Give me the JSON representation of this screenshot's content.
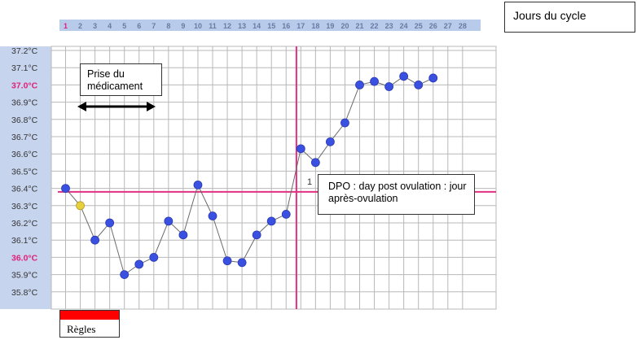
{
  "legend": {
    "label": "Jours du cycle"
  },
  "annotations": {
    "medication": "Prise du médicament",
    "dpo": "DPO : day post ovulation : jour après-ovulation",
    "dpo_marker": "1",
    "regles": "Règles"
  },
  "colors": {
    "day_strip": "#b9cbea",
    "day_text": "#6a7aa3",
    "day_highlight": "#e0207a",
    "grid": "#b8b8b8",
    "axis_strip": "#c7d4ee",
    "accent_line": "#e0307f",
    "point": "#3a50e0",
    "point_special": "#e6d03c",
    "series_line": "#6a6a6a",
    "regles": "#ff0000"
  },
  "chart_data": {
    "type": "line",
    "x": [
      1,
      2,
      3,
      4,
      5,
      6,
      7,
      8,
      9,
      10,
      11,
      12,
      13,
      14,
      15,
      16,
      17,
      18,
      19,
      20,
      21,
      22,
      23,
      24,
      25,
      26,
      27
    ],
    "xticks": [
      "1",
      "2",
      "3",
      "4",
      "5",
      "6",
      "7",
      "8",
      "9",
      "10",
      "11",
      "12",
      "13",
      "14",
      "15",
      "16",
      "17",
      "18",
      "19",
      "20",
      "21",
      "22",
      "23",
      "24",
      "25",
      "26",
      "27",
      "28"
    ],
    "yticks": [
      "37.2°C",
      "37.1°C",
      "37.0°C",
      "36.9°C",
      "36.8°C",
      "36.7°C",
      "36.6°C",
      "36.5°C",
      "36.4°C",
      "36.3°C",
      "36.2°C",
      "36.1°C",
      "36.0°C",
      "35.9°C",
      "35.8°C"
    ],
    "yticks_highlighted": [
      "37.0°C",
      "36.0°C"
    ],
    "series": [
      {
        "values": [
          36.4,
          36.3,
          36.1,
          36.2,
          35.9,
          35.96,
          36.0,
          36.21,
          36.13,
          36.42,
          36.24,
          35.98,
          35.97,
          36.13,
          36.21,
          36.25,
          36.63,
          36.55,
          36.67,
          36.78,
          37.0,
          37.02,
          36.99,
          37.05,
          37.0,
          37.04,
          null
        ]
      }
    ],
    "highlighted_point": {
      "x": 2,
      "y": 36.3
    },
    "coverline": 36.38,
    "ovulation_day": 16.7,
    "ylim": [
      35.7,
      37.2
    ],
    "xlim": [
      1,
      28
    ],
    "grid": true
  }
}
